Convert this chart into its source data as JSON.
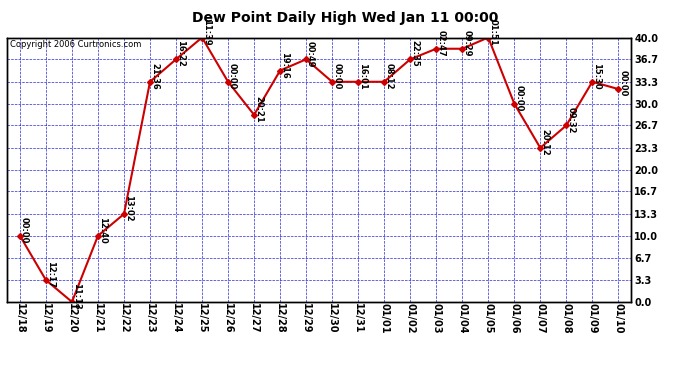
{
  "title": "Dew Point Daily High Wed Jan 11 00:00",
  "copyright": "Copyright 2006 Curtronics.com",
  "bg_color": "#ffffff",
  "grid_color": "#0000cc",
  "line_color": "#cc0000",
  "x_labels": [
    "12/18",
    "12/19",
    "12/20",
    "12/21",
    "12/22",
    "12/23",
    "12/24",
    "12/25",
    "12/26",
    "12/27",
    "12/28",
    "12/29",
    "12/30",
    "12/31",
    "01/01",
    "01/02",
    "01/03",
    "01/04",
    "01/05",
    "01/06",
    "01/07",
    "01/08",
    "01/09",
    "01/10"
  ],
  "y_values": [
    10.0,
    3.3,
    0.0,
    10.0,
    13.3,
    33.3,
    36.7,
    40.0,
    33.3,
    28.3,
    35.0,
    36.7,
    33.3,
    33.3,
    33.3,
    36.7,
    38.3,
    38.3,
    40.0,
    30.0,
    23.3,
    26.7,
    33.3,
    32.2
  ],
  "point_labels": [
    "00:00",
    "12:17",
    "11:13",
    "12:40",
    "13:02",
    "21:36",
    "16:22",
    "11:39",
    "00:00",
    "20:21",
    "19:16",
    "00:49",
    "00:00",
    "16:01",
    "08:12",
    "22:35",
    "02:47",
    "09:29",
    "01:51",
    "00:00",
    "20:12",
    "09:32",
    "15:30",
    "00:00"
  ],
  "yticks": [
    0.0,
    3.3,
    6.7,
    10.0,
    13.3,
    16.7,
    20.0,
    23.3,
    26.7,
    30.0,
    33.3,
    36.7,
    40.0
  ],
  "ylim": [
    0.0,
    40.0
  ],
  "title_fontsize": 10,
  "tick_fontsize": 7,
  "annot_fontsize": 6
}
